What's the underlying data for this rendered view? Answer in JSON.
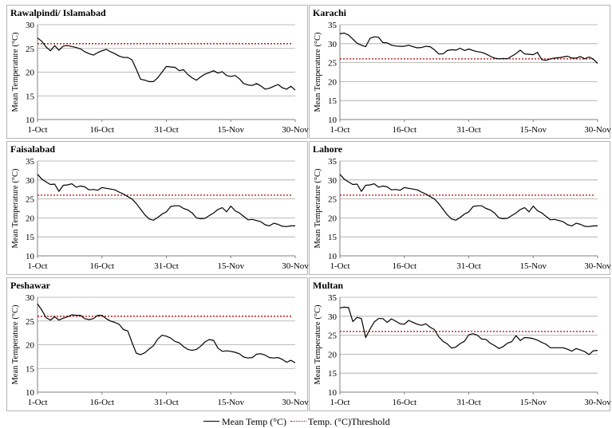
{
  "legend": {
    "mean": "Mean Temp (°C)",
    "threshold": "Temp. (°C)Threshold"
  },
  "colors": {
    "line": "#000000",
    "threshold": "#c00000",
    "grid": "#a6a6a6"
  },
  "chart_data": [
    {
      "type": "line",
      "title": "Rawalpindi/ Islamabad",
      "xlabel": "",
      "ylabel": "Mean Temperature (°C)",
      "ylim": [
        10,
        30
      ],
      "yticks": [
        10,
        15,
        20,
        25,
        30
      ],
      "xtick_labels": [
        "1-Oct",
        "16-Oct",
        "31-Oct",
        "15-Nov",
        "30-Nov"
      ],
      "xtick_days": [
        0,
        15,
        30,
        45,
        60
      ],
      "grid": true,
      "threshold": 26,
      "series": [
        {
          "name": "Mean Temp (°C)",
          "days": [
            0,
            1,
            2,
            3,
            4,
            5,
            6,
            7,
            8,
            9,
            10,
            11,
            12,
            13,
            14,
            15,
            16,
            17,
            18,
            19,
            20,
            21,
            22,
            23,
            24,
            25,
            26,
            27,
            28,
            29,
            30,
            31,
            32,
            33,
            34,
            35,
            36,
            37,
            38,
            39,
            40,
            41,
            42,
            43,
            44,
            45,
            46,
            47,
            48,
            49,
            50,
            51,
            52,
            53,
            54,
            55,
            56,
            57,
            58,
            59,
            60
          ],
          "values": [
            27.2,
            26.5,
            25.3,
            24.5,
            25.6,
            24.6,
            25.5,
            25.6,
            25.4,
            25.2,
            24.9,
            24.3,
            23.9,
            23.6,
            24.1,
            24.5,
            24.8,
            24.3,
            23.9,
            23.4,
            23.1,
            23.1,
            22.6,
            20.6,
            18.5,
            18.3,
            18.0,
            18.0,
            18.8,
            20.0,
            21.2,
            21.1,
            21.0,
            20.3,
            20.5,
            19.5,
            18.8,
            18.3,
            19.0,
            19.6,
            19.9,
            20.3,
            19.8,
            20.1,
            19.3,
            19.1,
            19.3,
            18.6,
            17.6,
            17.3,
            17.2,
            17.6,
            17.1,
            16.4,
            16.6,
            17.0,
            17.4,
            16.7,
            16.4,
            17.0,
            16.2
          ]
        }
      ]
    },
    {
      "type": "line",
      "title": "Karachi",
      "xlabel": "",
      "ylabel": "Mean Temperature (°C)",
      "ylim": [
        10,
        35
      ],
      "yticks": [
        10,
        15,
        20,
        25,
        30,
        35
      ],
      "xtick_labels": [
        "1-Oct",
        "16-Oct",
        "31-Oct",
        "15-Nov",
        "30-Nov"
      ],
      "xtick_days": [
        0,
        15,
        30,
        45,
        60
      ],
      "grid": true,
      "threshold": 26,
      "series": [
        {
          "name": "Mean Temp (°C)",
          "days": [
            0,
            1,
            2,
            3,
            4,
            5,
            6,
            7,
            8,
            9,
            10,
            11,
            12,
            13,
            14,
            15,
            16,
            17,
            18,
            19,
            20,
            21,
            22,
            23,
            24,
            25,
            26,
            27,
            28,
            29,
            30,
            31,
            32,
            33,
            34,
            35,
            36,
            37,
            38,
            39,
            40,
            41,
            42,
            43,
            44,
            45,
            46,
            47,
            48,
            49,
            50,
            51,
            52,
            53,
            54,
            55,
            56,
            57,
            58,
            59,
            60
          ],
          "values": [
            32.6,
            32.8,
            32.3,
            31.2,
            30.1,
            29.6,
            29.2,
            31.4,
            31.8,
            31.7,
            30.3,
            30.2,
            29.6,
            29.4,
            29.3,
            29.3,
            29.6,
            29.2,
            28.9,
            29.0,
            29.3,
            29.2,
            28.4,
            27.3,
            27.3,
            28.2,
            28.4,
            28.3,
            28.8,
            28.2,
            28.6,
            28.2,
            27.9,
            27.7,
            27.3,
            26.7,
            26.2,
            26.0,
            26.1,
            26.0,
            26.7,
            27.4,
            28.3,
            27.3,
            27.2,
            27.1,
            27.7,
            25.8,
            25.6,
            26.0,
            26.2,
            26.3,
            26.5,
            26.7,
            26.2,
            26.2,
            26.6,
            26.0,
            26.5,
            25.9,
            24.8
          ]
        }
      ]
    },
    {
      "type": "line",
      "title": "Faisalabad",
      "xlabel": "",
      "ylabel": "Mean Temperature (°C)",
      "ylim": [
        10,
        35
      ],
      "yticks": [
        10,
        15,
        20,
        25,
        30,
        35
      ],
      "xtick_labels": [
        "1-Oct",
        "16-Oct",
        "31-Oct",
        "15-Nov",
        "30-Nov"
      ],
      "xtick_days": [
        0,
        15,
        30,
        45,
        60
      ],
      "grid": true,
      "threshold": 26,
      "series": [
        {
          "name": "Mean Temp (°C)",
          "days": [
            0,
            1,
            2,
            3,
            4,
            5,
            6,
            7,
            8,
            9,
            10,
            11,
            12,
            13,
            14,
            15,
            16,
            17,
            18,
            19,
            20,
            21,
            22,
            23,
            24,
            25,
            26,
            27,
            28,
            29,
            30,
            31,
            32,
            33,
            34,
            35,
            36,
            37,
            38,
            39,
            40,
            41,
            42,
            43,
            44,
            45,
            46,
            47,
            48,
            49,
            50,
            51,
            52,
            53,
            54,
            55,
            56,
            57,
            58,
            59,
            60
          ],
          "values": [
            31.5,
            30.2,
            29.5,
            28.8,
            28.9,
            27.0,
            28.6,
            28.7,
            29.0,
            28.1,
            28.4,
            28.2,
            27.4,
            27.5,
            27.3,
            28.0,
            27.8,
            27.6,
            27.4,
            26.8,
            26.3,
            25.6,
            25.0,
            23.8,
            22.3,
            20.8,
            19.7,
            19.4,
            20.1,
            21.0,
            21.6,
            23.0,
            23.2,
            23.2,
            22.5,
            22.1,
            21.3,
            20.0,
            19.8,
            19.9,
            20.6,
            21.3,
            22.2,
            22.7,
            21.6,
            23.1,
            21.9,
            21.3,
            20.4,
            19.5,
            19.6,
            19.3,
            19.0,
            18.2,
            17.9,
            18.6,
            18.3,
            17.8,
            17.7,
            17.9,
            17.9
          ]
        }
      ]
    },
    {
      "type": "line",
      "title": "Lahore",
      "xlabel": "",
      "ylabel": "Mean Temperature (°C)",
      "ylim": [
        10,
        35
      ],
      "yticks": [
        10,
        15,
        20,
        25,
        30,
        35
      ],
      "xtick_labels": [
        "1-Oct",
        "16-Oct",
        "31-Oct",
        "15-Nov",
        "30-Nov"
      ],
      "xtick_days": [
        0,
        15,
        30,
        45,
        60
      ],
      "grid": true,
      "threshold": 26,
      "series": [
        {
          "name": "Mean Temp (°C)",
          "days": [
            0,
            1,
            2,
            3,
            4,
            5,
            6,
            7,
            8,
            9,
            10,
            11,
            12,
            13,
            14,
            15,
            16,
            17,
            18,
            19,
            20,
            21,
            22,
            23,
            24,
            25,
            26,
            27,
            28,
            29,
            30,
            31,
            32,
            33,
            34,
            35,
            36,
            37,
            38,
            39,
            40,
            41,
            42,
            43,
            44,
            45,
            46,
            47,
            48,
            49,
            50,
            51,
            52,
            53,
            54,
            55,
            56,
            57,
            58,
            59,
            60
          ],
          "values": [
            31.5,
            30.2,
            29.5,
            28.8,
            28.9,
            27.0,
            28.6,
            28.7,
            29.0,
            28.1,
            28.4,
            28.2,
            27.4,
            27.5,
            27.3,
            28.0,
            27.8,
            27.6,
            27.4,
            26.8,
            26.3,
            25.6,
            25.0,
            23.8,
            22.3,
            20.8,
            19.7,
            19.4,
            20.1,
            21.0,
            21.6,
            23.0,
            23.2,
            23.2,
            22.5,
            22.1,
            21.3,
            20.0,
            19.8,
            19.9,
            20.6,
            21.3,
            22.2,
            22.7,
            21.6,
            23.1,
            21.9,
            21.3,
            20.4,
            19.5,
            19.6,
            19.3,
            19.0,
            18.2,
            17.9,
            18.6,
            18.3,
            17.8,
            17.7,
            17.9,
            17.9
          ]
        }
      ]
    },
    {
      "type": "line",
      "title": "Peshawar",
      "xlabel": "",
      "ylabel": "Mean Temperature (°C)",
      "ylim": [
        10,
        30
      ],
      "yticks": [
        10,
        15,
        20,
        25,
        30
      ],
      "xtick_labels": [
        "1-Oct",
        "16-Oct",
        "31-Oct",
        "15-Nov",
        "30-Nov"
      ],
      "xtick_days": [
        0,
        15,
        30,
        45,
        60
      ],
      "grid": true,
      "threshold": 26,
      "series": [
        {
          "name": "Mean Temp (°C)",
          "days": [
            0,
            1,
            2,
            3,
            4,
            5,
            6,
            7,
            8,
            9,
            10,
            11,
            12,
            13,
            14,
            15,
            16,
            17,
            18,
            19,
            20,
            21,
            22,
            23,
            24,
            25,
            26,
            27,
            28,
            29,
            30,
            31,
            32,
            33,
            34,
            35,
            36,
            37,
            38,
            39,
            40,
            41,
            42,
            43,
            44,
            45,
            46,
            47,
            48,
            49,
            50,
            51,
            52,
            53,
            54,
            55,
            56,
            57,
            58,
            59,
            60
          ],
          "values": [
            28.6,
            27.3,
            25.7,
            25.2,
            25.9,
            25.2,
            25.6,
            25.9,
            26.3,
            26.2,
            26.2,
            25.5,
            25.3,
            25.5,
            26.2,
            26.2,
            25.5,
            25.0,
            24.7,
            24.3,
            23.2,
            22.9,
            20.5,
            18.2,
            17.9,
            18.3,
            19.1,
            19.8,
            21.2,
            22.0,
            21.8,
            21.4,
            20.7,
            20.4,
            19.6,
            19.0,
            18.8,
            19.0,
            19.7,
            20.6,
            21.1,
            20.9,
            19.3,
            18.6,
            18.7,
            18.6,
            18.4,
            18.1,
            17.4,
            17.2,
            17.3,
            18.0,
            18.1,
            17.8,
            17.3,
            17.2,
            17.3,
            16.9,
            16.3,
            16.7,
            16.2
          ]
        }
      ]
    },
    {
      "type": "line",
      "title": "Multan",
      "xlabel": "",
      "ylabel": "Mean Temperature (°C)",
      "ylim": [
        10,
        35
      ],
      "yticks": [
        10,
        15,
        20,
        25,
        30,
        35
      ],
      "xtick_labels": [
        "1-Oct",
        "16-Oct",
        "31-Oct",
        "15-Nov",
        "30-Nov"
      ],
      "xtick_days": [
        0,
        15,
        30,
        45,
        60
      ],
      "grid": true,
      "threshold": 26,
      "series": [
        {
          "name": "Mean Temp (°C)",
          "days": [
            0,
            1,
            2,
            3,
            4,
            5,
            6,
            7,
            8,
            9,
            10,
            11,
            12,
            13,
            14,
            15,
            16,
            17,
            18,
            19,
            20,
            21,
            22,
            23,
            24,
            25,
            26,
            27,
            28,
            29,
            30,
            31,
            32,
            33,
            34,
            35,
            36,
            37,
            38,
            39,
            40,
            41,
            42,
            43,
            44,
            45,
            46,
            47,
            48,
            49,
            50,
            51,
            52,
            53,
            54,
            55,
            56,
            57,
            58,
            59,
            60
          ],
          "values": [
            32.2,
            32.4,
            32.3,
            28.6,
            29.7,
            29.4,
            24.4,
            26.6,
            28.5,
            29.4,
            29.4,
            28.4,
            29.3,
            28.7,
            28.0,
            27.9,
            28.9,
            28.4,
            27.9,
            27.6,
            28.0,
            27.1,
            26.5,
            24.6,
            23.4,
            22.7,
            21.6,
            21.9,
            22.8,
            23.4,
            25.1,
            25.4,
            25.0,
            24.0,
            23.9,
            22.9,
            22.3,
            21.5,
            22.0,
            22.9,
            23.3,
            24.9,
            23.6,
            24.4,
            24.3,
            24.1,
            23.7,
            23.1,
            22.6,
            21.7,
            21.7,
            21.7,
            21.7,
            21.3,
            20.8,
            21.5,
            21.1,
            20.7,
            19.9,
            20.9,
            21.0
          ]
        }
      ]
    }
  ]
}
